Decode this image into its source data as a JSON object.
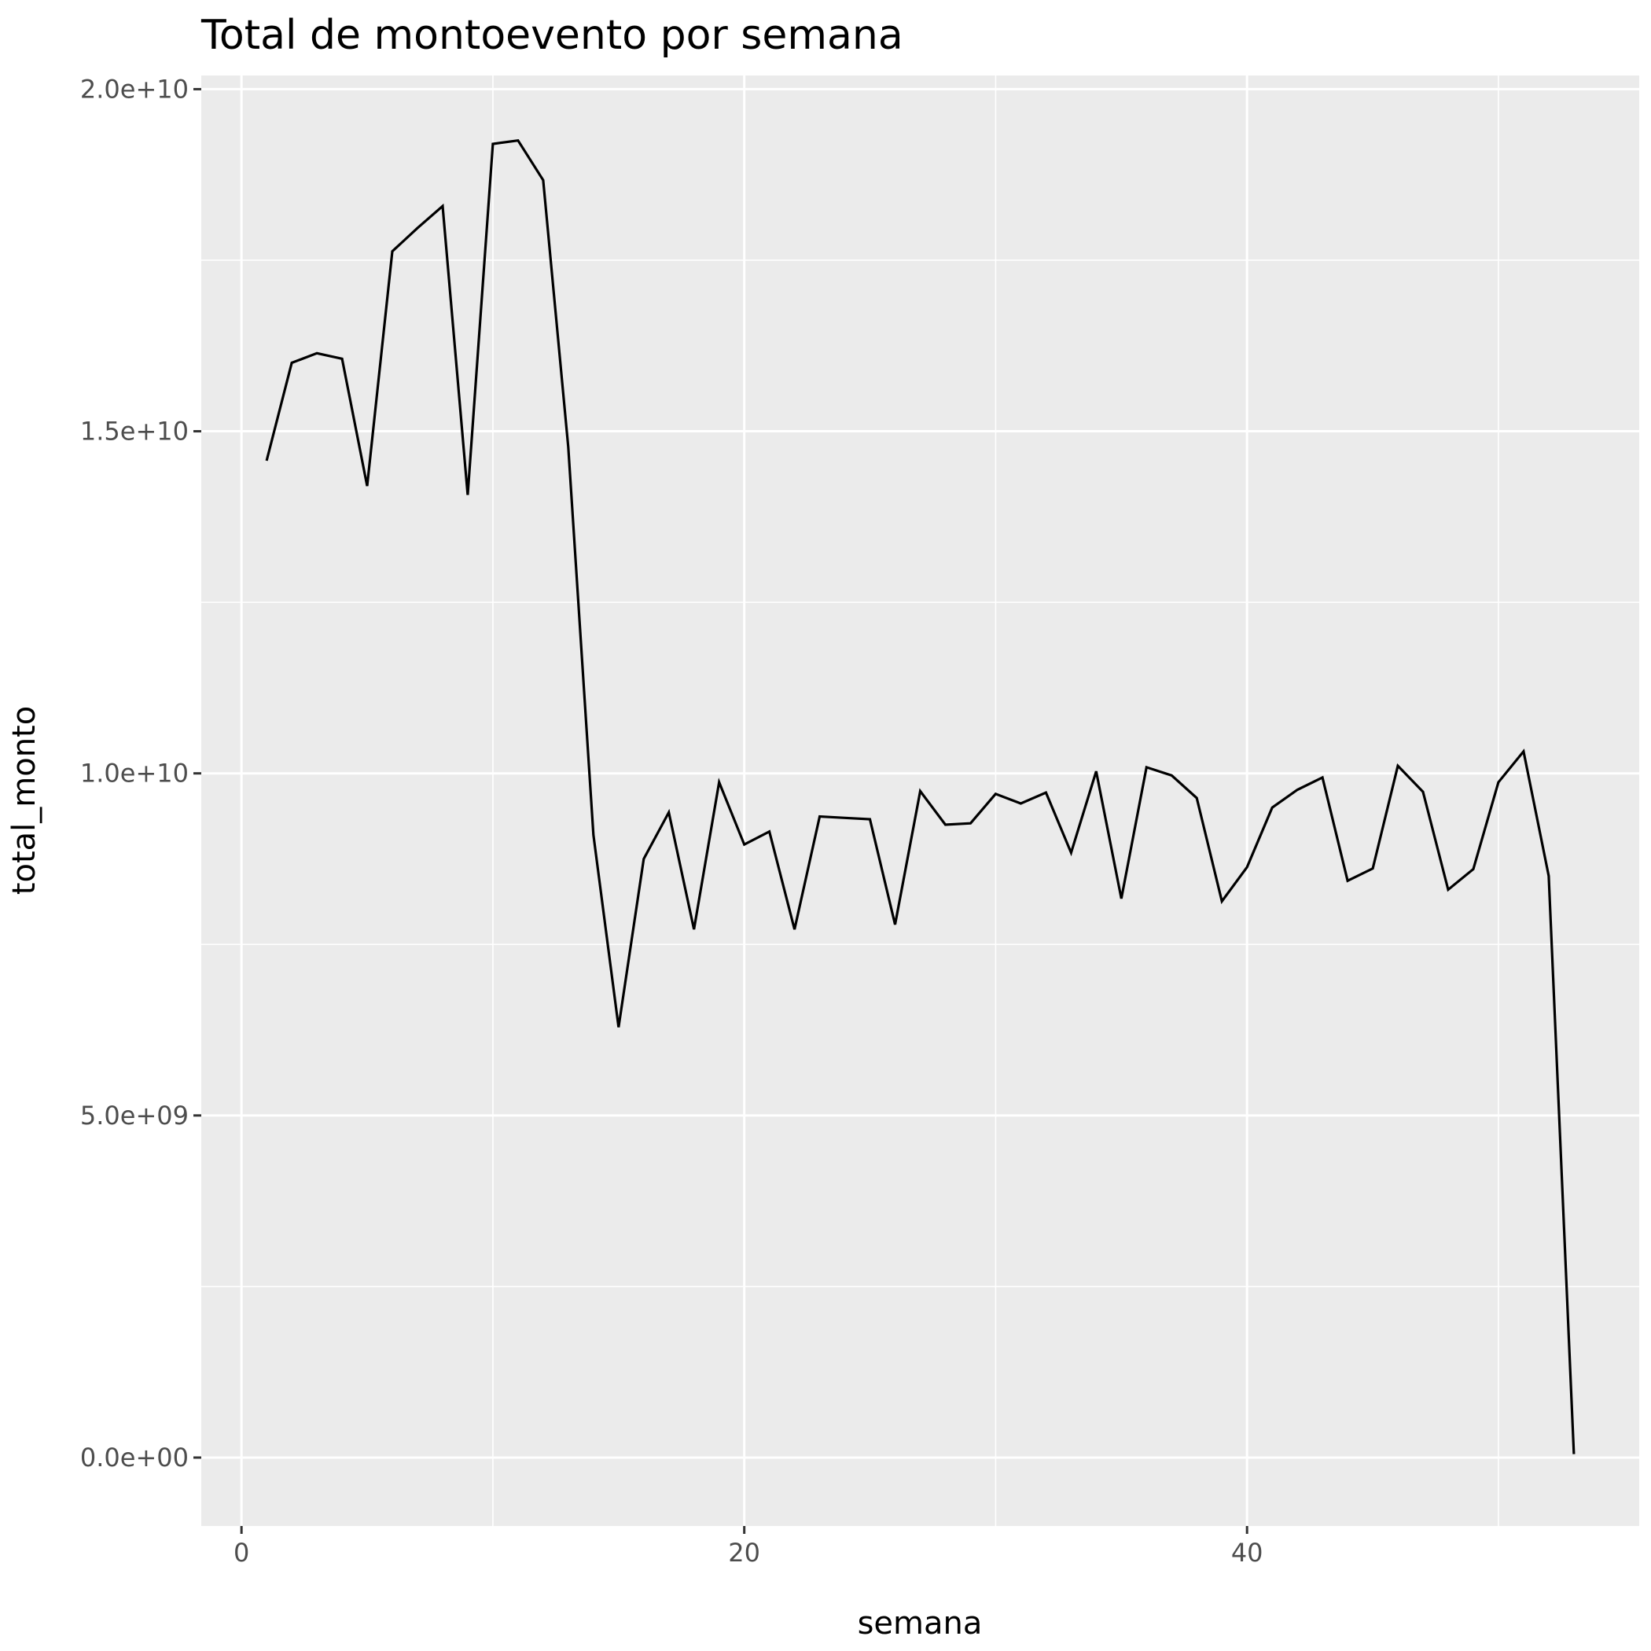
{
  "chart_data": {
    "type": "line",
    "title": "Total de montoevento por semana",
    "xlabel": "semana",
    "ylabel": "total_monto",
    "xlim": [
      -1.6,
      55.6
    ],
    "ylim": [
      -1000000000.0,
      20200000000.0
    ],
    "x_ticks": [
      0,
      20,
      40
    ],
    "x_tick_labels": [
      "0",
      "20",
      "40"
    ],
    "x_minor_ticks": [
      10,
      30,
      50
    ],
    "y_ticks": [
      0,
      5000000000.0,
      10000000000.0,
      15000000000.0,
      20000000000.0
    ],
    "y_tick_labels": [
      "0.0e+00",
      "5.0e+09",
      "1.0e+10",
      "1.5e+10",
      "2.0e+10"
    ],
    "y_minor_ticks": [
      2500000000.0,
      7500000000.0,
      12500000000.0,
      17500000000.0
    ],
    "grid": true,
    "colors": {
      "panel": "#ebebeb",
      "grid": "#ffffff",
      "line": "#000000",
      "tick": "#333333"
    },
    "series": [
      {
        "x": [
          1,
          2,
          3,
          4,
          5,
          6,
          7,
          8,
          9,
          10,
          11,
          12,
          13,
          14,
          15,
          16,
          17,
          18,
          19,
          20,
          21,
          22,
          23,
          24,
          25,
          26,
          27,
          28,
          29,
          30,
          31,
          32,
          33,
          34,
          35,
          36,
          37,
          38,
          39,
          40,
          41,
          42,
          43,
          44,
          45,
          46,
          47,
          48,
          49,
          50,
          51,
          52,
          53
        ],
        "values": [
          14570000000.0,
          16000000000.0,
          16140000000.0,
          16060000000.0,
          14200000000.0,
          17630000000.0,
          17970000000.0,
          18290000000.0,
          14070000000.0,
          19200000000.0,
          19250000000.0,
          18670000000.0,
          14770000000.0,
          9100000000.0,
          6290000000.0,
          8750000000.0,
          9430000000.0,
          7720000000.0,
          9870000000.0,
          8960000000.0,
          9150000000.0,
          7720000000.0,
          9370000000.0,
          9350000000.0,
          9330000000.0,
          7790000000.0,
          9740000000.0,
          9250000000.0,
          9270000000.0,
          9700000000.0,
          9560000000.0,
          9720000000.0,
          8840000000.0,
          10030000000.0,
          8170000000.0,
          10090000000.0,
          9970000000.0,
          9640000000.0,
          8130000000.0,
          8630000000.0,
          9500000000.0,
          9760000000.0,
          9940000000.0,
          8430000000.0,
          8610000000.0,
          10110000000.0,
          9730000000.0,
          8300000000.0,
          8600000000.0,
          9870000000.0,
          10320000000.0,
          8500000000.0,
          50000000.0
        ]
      }
    ]
  }
}
